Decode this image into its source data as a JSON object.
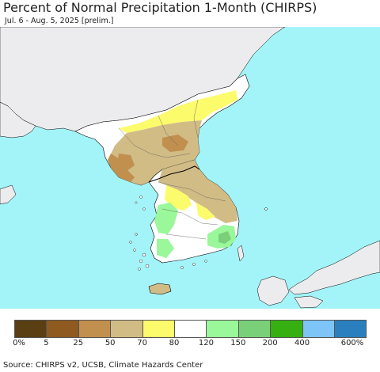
{
  "header": {
    "title": "Percent of Normal Precipitation 1-Month (CHIRPS)",
    "subtitle": "Jul. 6 - Aug. 5, 2025 [prelim.]"
  },
  "map": {
    "ocean_color": "#a3f4f8",
    "land_outside_color": "#ececee",
    "no_data_color": "#ffffff",
    "border_color": "#000000"
  },
  "legend": {
    "bins": [
      {
        "color": "#5a3f12"
      },
      {
        "color": "#8e5a1f"
      },
      {
        "color": "#c18f4e"
      },
      {
        "color": "#d1bc86"
      },
      {
        "color": "#fcfb6c"
      },
      {
        "color": "#ffffff"
      },
      {
        "color": "#9af79a"
      },
      {
        "color": "#79d079"
      },
      {
        "color": "#36b010"
      },
      {
        "color": "#7dc4f7"
      },
      {
        "color": "#2a7fbe"
      }
    ],
    "ticks": [
      "0%",
      "5",
      "25",
      "50",
      "70",
      "80",
      "120",
      "150",
      "200",
      "400",
      "600%"
    ]
  },
  "footer": {
    "source": "Source: CHIRPS v2, UCSB, Climate Hazards Center"
  }
}
